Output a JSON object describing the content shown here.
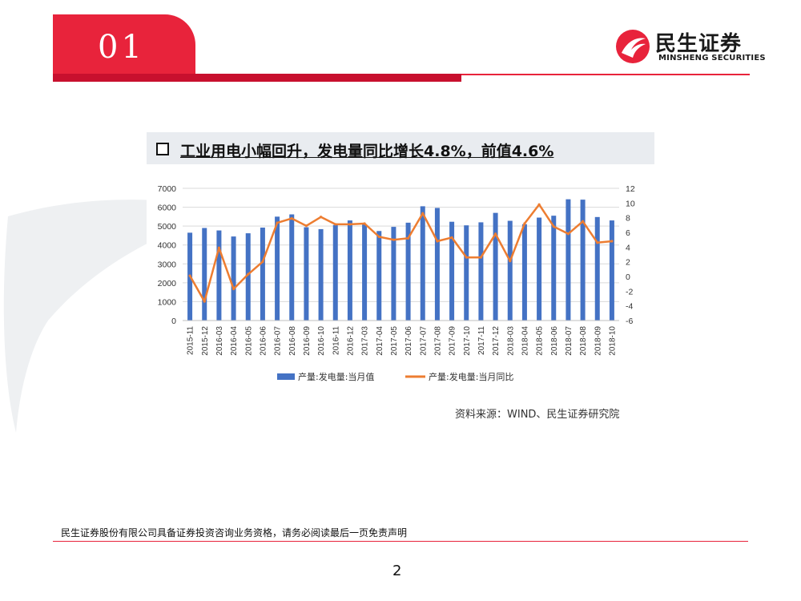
{
  "header": {
    "section_number": "01",
    "logo_cn": "民生证券",
    "logo_en": "MINSHENG SECURITIES"
  },
  "slide_title": "工业用电小幅回升，发电量同比增长4.8%，前值4.6%",
  "source_note": "资料来源：WIND、民生证券研究院",
  "footer": {
    "disclaimer": "民生证券股份有限公司具备证券投资咨询业务资格，请务必阅读最后一页免责声明",
    "page_number": "2"
  },
  "colors": {
    "brand_red": "#e8233b",
    "bar_blue": "#4472c4",
    "line_orange": "#ed7d31"
  },
  "chart_data": {
    "type": "bar",
    "categories": [
      "2015-11",
      "2015-12",
      "2016-03",
      "2016-04",
      "2016-05",
      "2016-06",
      "2016-07",
      "2016-08",
      "2016-09",
      "2016-10",
      "2016-11",
      "2016-12",
      "2017-03",
      "2017-04",
      "2017-05",
      "2017-06",
      "2017-07",
      "2017-08",
      "2017-09",
      "2017-10",
      "2017-11",
      "2017-12",
      "2018-03",
      "2018-04",
      "2018-05",
      "2018-06",
      "2018-07",
      "2018-08",
      "2018-09",
      "2018-10"
    ],
    "series": [
      {
        "name": "产量:发电量:当月值",
        "type": "bar",
        "axis": "left",
        "values": [
          4650,
          4900,
          4770,
          4450,
          4620,
          4920,
          5500,
          5620,
          4940,
          4840,
          5060,
          5300,
          5100,
          4740,
          4960,
          5180,
          6050,
          5960,
          5230,
          5040,
          5200,
          5700,
          5280,
          5100,
          5450,
          5550,
          6420,
          6400,
          5480,
          5300
        ]
      },
      {
        "name": "产量:发电量:当月同比",
        "type": "line",
        "axis": "right",
        "values": [
          0.1,
          -3.4,
          3.9,
          -1.7,
          0.3,
          2.0,
          7.3,
          7.9,
          6.9,
          8.1,
          7.1,
          7.1,
          7.2,
          5.4,
          5.0,
          5.2,
          8.6,
          4.8,
          5.3,
          2.6,
          2.6,
          5.8,
          2.1,
          7.2,
          9.8,
          6.8,
          5.8,
          7.5,
          4.6,
          4.8
        ]
      }
    ],
    "y_left": {
      "min": 0,
      "max": 7000,
      "ticks": [
        0,
        1000,
        2000,
        3000,
        4000,
        5000,
        6000,
        7000
      ]
    },
    "y_right": {
      "min": -6,
      "max": 12,
      "ticks": [
        -6,
        -4,
        -2,
        0,
        2,
        4,
        6,
        8,
        10,
        12
      ]
    },
    "grid": true,
    "legend_position": "bottom"
  }
}
